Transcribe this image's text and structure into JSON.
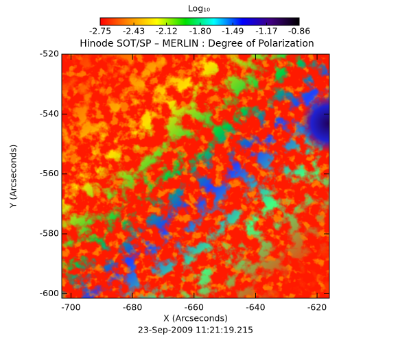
{
  "chart_data": {
    "type": "heatmap",
    "title": "Hinode SOT/SP – MERLIN : Degree of Polarization",
    "colorbar_label": "Log₁₀",
    "colorbar_lim": [
      -2.75,
      -0.86
    ],
    "colorbar_ticks": [
      -2.75,
      -2.43,
      -2.12,
      {
        "value": -1.8,
        "label": "-1.80"
      },
      -1.49,
      -1.17,
      -0.86
    ],
    "colormap": [
      "#ff0000",
      "#ff8c00",
      "#ffff00",
      "#00e000",
      "#00ffff",
      "#0000ff",
      "#400080",
      "#000000"
    ],
    "xlabel": "X (Arcseconds)",
    "ylabel": "Y (Arcseconds)",
    "date": "23-Sep-2009 11:21:19.215",
    "xlim": [
      -703,
      -616
    ],
    "xticks": [
      -700,
      -680,
      -660,
      -640,
      -620
    ],
    "ylim": [
      -601.5,
      -520
    ],
    "yticks": [
      -600,
      -580,
      -560,
      -540,
      -520
    ]
  }
}
